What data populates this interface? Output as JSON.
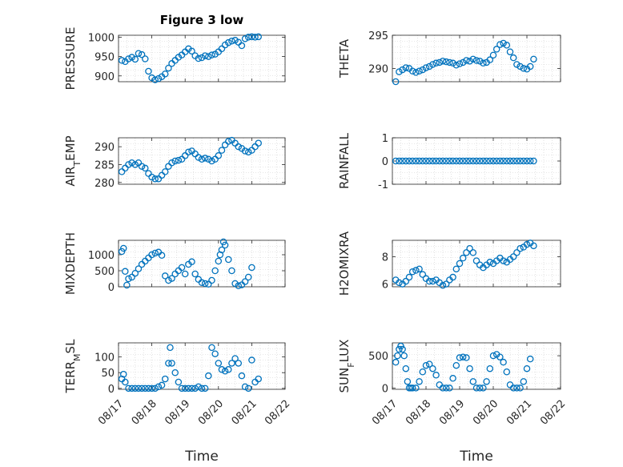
{
  "chart_data": [
    {
      "type": "scatter",
      "title": "Figure 3 low",
      "ylabel": "PRESSURE",
      "ylim": [
        885,
        1005
      ],
      "yticks": [
        "900",
        "950",
        "1000"
      ],
      "ytick_values": [
        900,
        950,
        1000
      ],
      "xlim": [
        0,
        5
      ],
      "x": [
        0.1,
        0.2,
        0.3,
        0.4,
        0.5,
        0.6,
        0.7,
        0.8,
        0.9,
        1.0,
        1.1,
        1.2,
        1.3,
        1.4,
        1.5,
        1.6,
        1.7,
        1.8,
        1.9,
        2.0,
        2.1,
        2.2,
        2.3,
        2.4,
        2.5,
        2.6,
        2.7,
        2.8,
        2.9,
        3.0,
        3.1,
        3.2,
        3.3,
        3.4,
        3.5,
        3.6,
        3.7,
        3.8,
        3.9,
        4.0,
        4.1,
        4.2
      ],
      "y": [
        940,
        937,
        944,
        948,
        943,
        958,
        955,
        944,
        912,
        895,
        890,
        893,
        898,
        905,
        920,
        932,
        940,
        948,
        954,
        962,
        970,
        964,
        952,
        945,
        947,
        952,
        950,
        954,
        956,
        962,
        970,
        980,
        986,
        990,
        992,
        987,
        978,
        996,
        1000,
        1001,
        1000,
        1001
      ]
    },
    {
      "type": "scatter",
      "ylabel": "THETA",
      "ylim": [
        288,
        295
      ],
      "yticks": [
        "290",
        "295"
      ],
      "ytick_values": [
        290,
        295
      ],
      "xlim": [
        0,
        5
      ],
      "x": [
        0.1,
        0.2,
        0.3,
        0.4,
        0.5,
        0.6,
        0.7,
        0.8,
        0.9,
        1.0,
        1.1,
        1.2,
        1.3,
        1.4,
        1.5,
        1.6,
        1.7,
        1.8,
        1.9,
        2.0,
        2.1,
        2.2,
        2.3,
        2.4,
        2.5,
        2.6,
        2.7,
        2.8,
        2.9,
        3.0,
        3.1,
        3.2,
        3.3,
        3.4,
        3.5,
        3.6,
        3.7,
        3.8,
        3.9,
        4.0,
        4.1,
        4.2
      ],
      "y": [
        288,
        289.5,
        289.8,
        290.1,
        290.0,
        289.6,
        289.4,
        289.6,
        289.8,
        290.1,
        290.3,
        290.6,
        290.8,
        290.9,
        291.1,
        291.0,
        290.9,
        290.8,
        290.5,
        290.7,
        290.9,
        291.2,
        291.1,
        291.4,
        291.2,
        291.1,
        290.8,
        290.9,
        291.3,
        292.0,
        292.9,
        293.6,
        293.8,
        293.5,
        292.5,
        291.6,
        290.6,
        290.3,
        290.0,
        289.9,
        290.3,
        291.4
      ]
    },
    {
      "type": "scatter",
      "ylabel_main": "AIR",
      "ylabel_sub": "T",
      "ylabel_rest": "EMP",
      "ylim": [
        279.5,
        292.5
      ],
      "yticks": [
        "280",
        "285",
        "290"
      ],
      "ytick_values": [
        280,
        285,
        290
      ],
      "xlim": [
        0,
        5
      ],
      "x": [
        0.1,
        0.2,
        0.3,
        0.4,
        0.5,
        0.6,
        0.7,
        0.8,
        0.9,
        1.0,
        1.1,
        1.2,
        1.3,
        1.4,
        1.5,
        1.6,
        1.7,
        1.8,
        1.9,
        2.0,
        2.1,
        2.2,
        2.3,
        2.4,
        2.5,
        2.6,
        2.7,
        2.8,
        2.9,
        3.0,
        3.1,
        3.2,
        3.3,
        3.4,
        3.5,
        3.6,
        3.7,
        3.8,
        3.9,
        4.0,
        4.1,
        4.2
      ],
      "y": [
        283,
        284,
        285,
        285.5,
        285,
        285.5,
        284.5,
        284,
        282.5,
        281.5,
        281,
        281,
        282,
        283,
        284.5,
        285.5,
        286,
        286.2,
        286.5,
        287.5,
        288.5,
        288.8,
        288,
        287,
        286.5,
        286.8,
        286.5,
        286,
        286.5,
        287.5,
        289,
        290.5,
        291.5,
        291.8,
        291,
        290,
        289.5,
        288.8,
        288.5,
        289,
        290,
        291
      ]
    },
    {
      "type": "scatter",
      "ylabel": "RAINFALL",
      "ylim": [
        -1,
        1
      ],
      "yticks": [
        "-1",
        "0",
        "1"
      ],
      "ytick_values": [
        -1,
        0,
        1
      ],
      "xlim": [
        0,
        5
      ],
      "x": [
        0.1,
        0.2,
        0.3,
        0.4,
        0.5,
        0.6,
        0.7,
        0.8,
        0.9,
        1.0,
        1.1,
        1.2,
        1.3,
        1.4,
        1.5,
        1.6,
        1.7,
        1.8,
        1.9,
        2.0,
        2.1,
        2.2,
        2.3,
        2.4,
        2.5,
        2.6,
        2.7,
        2.8,
        2.9,
        3.0,
        3.1,
        3.2,
        3.3,
        3.4,
        3.5,
        3.6,
        3.7,
        3.8,
        3.9,
        4.0,
        4.1,
        4.2
      ],
      "y": [
        0,
        0,
        0,
        0,
        0,
        0,
        0,
        0,
        0,
        0,
        0,
        0,
        0,
        0,
        0,
        0,
        0,
        0,
        0,
        0,
        0,
        0,
        0,
        0,
        0,
        0,
        0,
        0,
        0,
        0,
        0,
        0,
        0,
        0,
        0,
        0,
        0,
        0,
        0,
        0,
        0,
        0
      ]
    },
    {
      "type": "scatter",
      "ylabel": "MIXDEPTH",
      "ylim": [
        0,
        1450
      ],
      "yticks": [
        "0",
        "500",
        "1000"
      ],
      "ytick_values": [
        0,
        500,
        1000
      ],
      "xlim": [
        0,
        5
      ],
      "x": [
        0.1,
        0.15,
        0.2,
        0.25,
        0.3,
        0.4,
        0.5,
        0.6,
        0.7,
        0.8,
        0.9,
        1.0,
        1.1,
        1.2,
        1.3,
        1.4,
        1.5,
        1.6,
        1.7,
        1.8,
        1.9,
        2.0,
        2.1,
        2.2,
        2.3,
        2.4,
        2.5,
        2.6,
        2.7,
        2.8,
        2.9,
        3.0,
        3.05,
        3.1,
        3.15,
        3.2,
        3.3,
        3.4,
        3.5,
        3.6,
        3.7,
        3.8,
        3.9,
        4.0
      ],
      "y": [
        1100,
        1200,
        480,
        50,
        250,
        300,
        420,
        560,
        700,
        800,
        900,
        1000,
        1050,
        1080,
        980,
        340,
        200,
        260,
        400,
        500,
        600,
        400,
        700,
        780,
        400,
        230,
        130,
        100,
        80,
        200,
        500,
        800,
        1000,
        1150,
        1400,
        1300,
        850,
        500,
        100,
        30,
        60,
        160,
        300,
        600
      ]
    },
    {
      "type": "scatter",
      "ylabel": "H2OMIXRA",
      "ylim": [
        5.8,
        9.2
      ],
      "yticks": [
        "6",
        "8"
      ],
      "ytick_values": [
        6,
        8
      ],
      "xlim": [
        0,
        5
      ],
      "x": [
        0.1,
        0.2,
        0.3,
        0.4,
        0.5,
        0.6,
        0.7,
        0.8,
        0.9,
        1.0,
        1.1,
        1.2,
        1.3,
        1.4,
        1.5,
        1.6,
        1.7,
        1.8,
        1.9,
        2.0,
        2.1,
        2.2,
        2.3,
        2.4,
        2.5,
        2.6,
        2.7,
        2.8,
        2.9,
        3.0,
        3.1,
        3.2,
        3.3,
        3.4,
        3.5,
        3.6,
        3.7,
        3.8,
        3.9,
        4.0,
        4.1,
        4.2
      ],
      "y": [
        6.3,
        6.1,
        6.0,
        6.2,
        6.5,
        6.9,
        7.0,
        7.1,
        6.7,
        6.4,
        6.2,
        6.2,
        6.3,
        6.1,
        5.9,
        6.0,
        6.3,
        6.5,
        7.1,
        7.5,
        7.9,
        8.3,
        8.6,
        8.3,
        7.7,
        7.4,
        7.2,
        7.4,
        7.6,
        7.5,
        7.7,
        7.9,
        7.7,
        7.6,
        7.8,
        8.0,
        8.3,
        8.6,
        8.7,
        8.9,
        9.0,
        8.8
      ]
    },
    {
      "type": "scatter",
      "ylabel_main": "TERR",
      "ylabel_sub": "M",
      "ylabel_rest": "SL",
      "ylim": [
        -3,
        145
      ],
      "yticks": [
        "0",
        "50",
        "100"
      ],
      "ytick_values": [
        0,
        50,
        100
      ],
      "xlim": [
        0,
        5
      ],
      "x": [
        0.1,
        0.15,
        0.2,
        0.3,
        0.4,
        0.5,
        0.6,
        0.7,
        0.8,
        0.9,
        1.0,
        1.1,
        1.2,
        1.3,
        1.4,
        1.5,
        1.55,
        1.6,
        1.7,
        1.8,
        1.9,
        2.0,
        2.1,
        2.2,
        2.3,
        2.4,
        2.5,
        2.6,
        2.7,
        2.8,
        2.9,
        3.0,
        3.1,
        3.2,
        3.3,
        3.4,
        3.5,
        3.6,
        3.7,
        3.8,
        3.9,
        4.0,
        4.1,
        4.2
      ],
      "y": [
        30,
        45,
        20,
        0,
        0,
        0,
        0,
        0,
        0,
        0,
        0,
        0,
        5,
        10,
        30,
        80,
        130,
        80,
        50,
        20,
        0,
        0,
        0,
        0,
        0,
        5,
        0,
        0,
        40,
        130,
        110,
        80,
        60,
        55,
        60,
        80,
        95,
        80,
        40,
        5,
        0,
        90,
        20,
        30
      ]
    },
    {
      "type": "scatter",
      "ylabel_main": "SUN",
      "ylabel_sub": "F",
      "ylabel_rest": "LUX",
      "ylim": [
        -20,
        700
      ],
      "yticks": [
        "0",
        "500"
      ],
      "ytick_values": [
        0,
        500
      ],
      "xlim": [
        0,
        5
      ],
      "x": [
        0.1,
        0.15,
        0.2,
        0.25,
        0.3,
        0.35,
        0.4,
        0.45,
        0.5,
        0.55,
        0.6,
        0.7,
        0.8,
        0.9,
        1.0,
        1.1,
        1.2,
        1.3,
        1.4,
        1.5,
        1.6,
        1.7,
        1.8,
        1.9,
        2.0,
        2.1,
        2.2,
        2.3,
        2.4,
        2.5,
        2.6,
        2.7,
        2.8,
        2.9,
        3.0,
        3.1,
        3.2,
        3.3,
        3.4,
        3.5,
        3.6,
        3.7,
        3.8,
        3.9,
        4.0,
        4.1
      ],
      "y": [
        400,
        500,
        600,
        650,
        600,
        500,
        300,
        100,
        0,
        0,
        0,
        0,
        100,
        250,
        350,
        370,
        300,
        200,
        50,
        0,
        0,
        0,
        150,
        350,
        470,
        480,
        470,
        300,
        100,
        0,
        0,
        0,
        100,
        300,
        500,
        520,
        480,
        400,
        250,
        50,
        0,
        0,
        0,
        100,
        300,
        450
      ]
    }
  ],
  "xtick_labels": [
    "08/17",
    "08/18",
    "08/19",
    "08/20",
    "08/21",
    "08/22"
  ],
  "xlabel": "Time",
  "colors": {
    "marker": "#0072BD",
    "axes": "#262626",
    "grid": "#cfcfcf"
  }
}
